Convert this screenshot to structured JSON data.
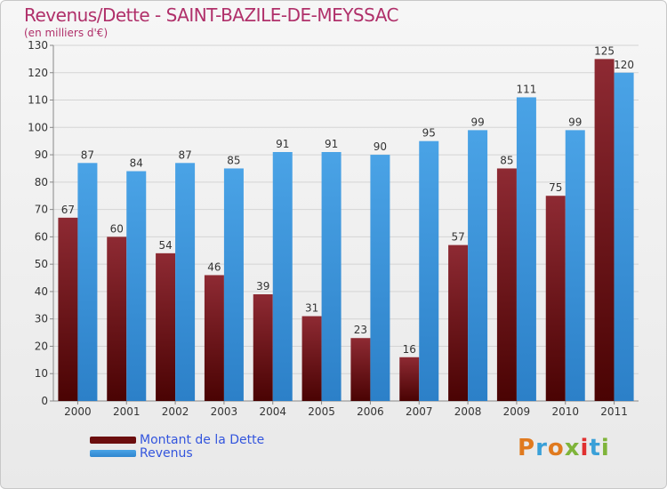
{
  "title": "Revenus/Dette - SAINT-BAZILE-DE-MEYSSAC",
  "subtitle": "(en milliers d'€)",
  "logo_text": "Proxiti",
  "colors": {
    "dette": "#7a1e26",
    "revenus": "#4aa3e6",
    "title": "#b0306a",
    "legend_text": "#3355dd"
  },
  "legend": [
    {
      "label": "Montant de la Dette",
      "color": "#6b0e0e"
    },
    {
      "label": "Revenus",
      "color": "#4aa3e6"
    }
  ],
  "chart_data": {
    "type": "bar",
    "title": "Revenus/Dette - SAINT-BAZILE-DE-MEYSSAC",
    "subtitle": "(en milliers d'€)",
    "categories": [
      "2000",
      "2001",
      "2002",
      "2003",
      "2004",
      "2005",
      "2006",
      "2007",
      "2008",
      "2009",
      "2010",
      "2011"
    ],
    "series": [
      {
        "name": "Montant de la Dette",
        "values": [
          67,
          60,
          54,
          46,
          39,
          31,
          23,
          16,
          57,
          85,
          75,
          125
        ]
      },
      {
        "name": "Revenus",
        "values": [
          87,
          84,
          87,
          85,
          91,
          91,
          90,
          95,
          99,
          111,
          99,
          120
        ]
      }
    ],
    "ylim": [
      0,
      130
    ],
    "yticks": [
      0,
      10,
      20,
      30,
      40,
      50,
      60,
      70,
      80,
      90,
      100,
      110,
      120,
      130
    ],
    "grid": true,
    "legend_position": "bottom-left"
  }
}
